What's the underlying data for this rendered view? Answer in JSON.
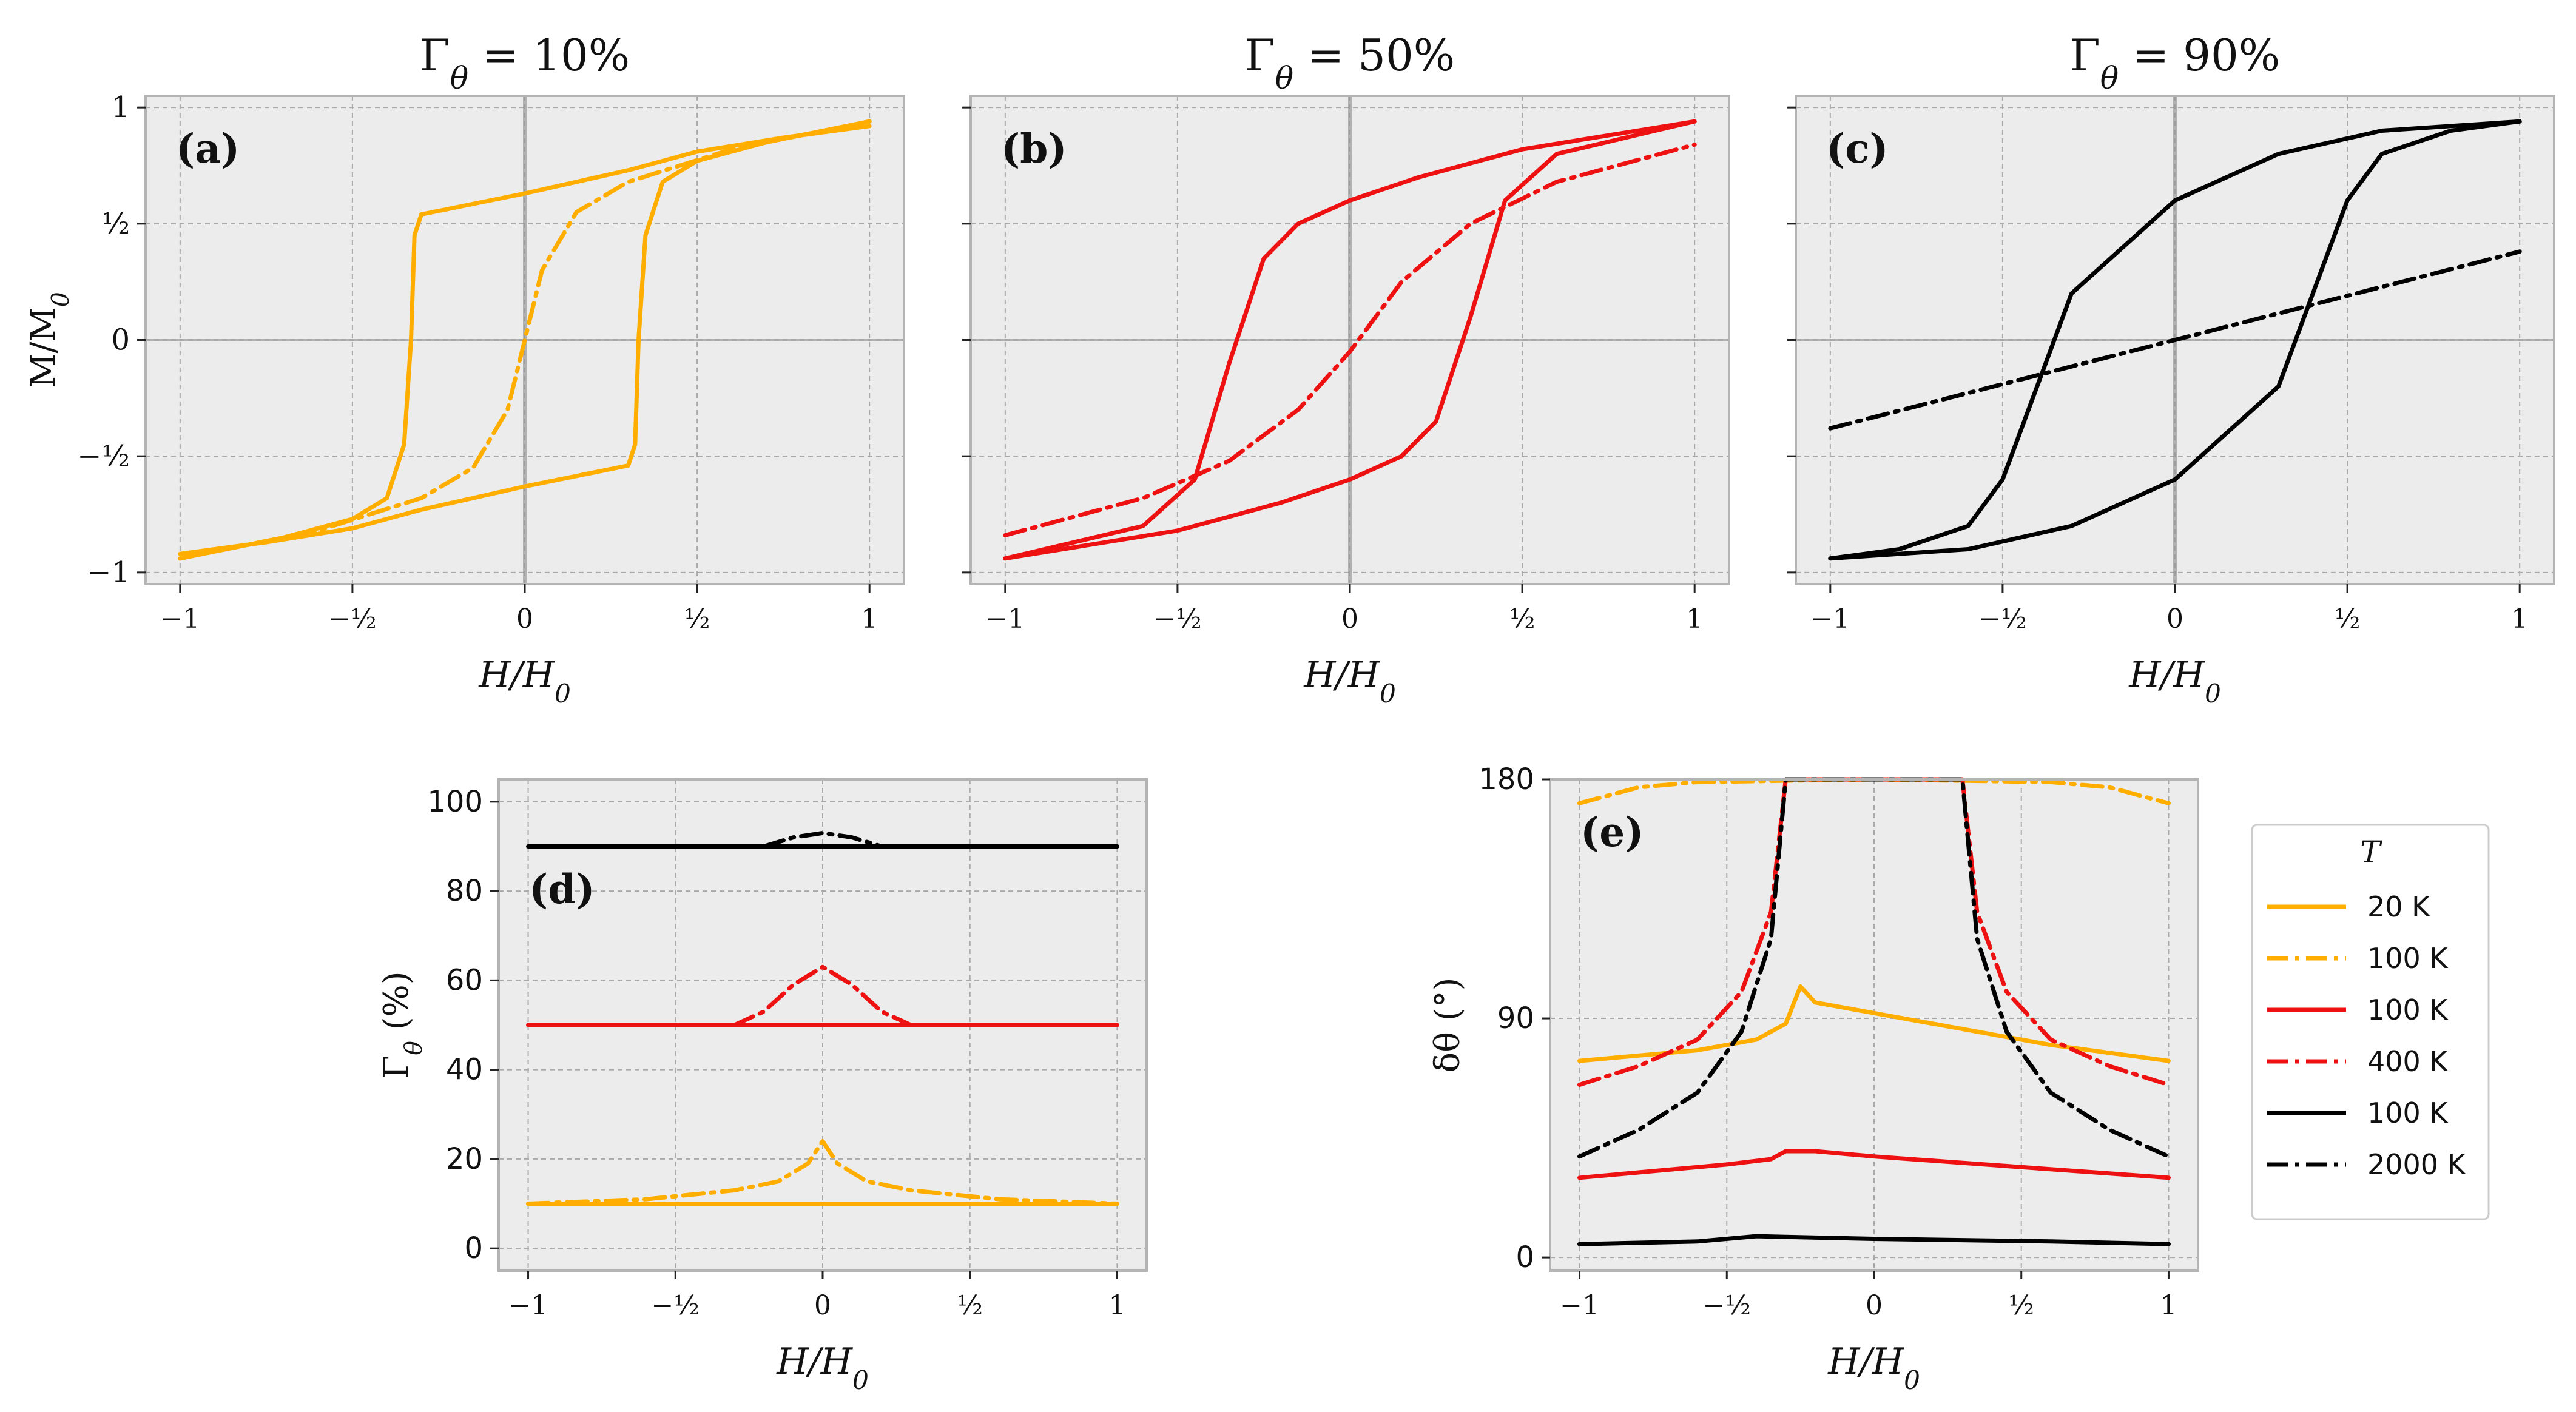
{
  "chart_data": [
    {
      "id": "a",
      "type": "line",
      "title": "Γ_θ = 10%",
      "panel_label": "(a)",
      "xlabel": "H/H_0",
      "ylabel": "M/M_0",
      "xlim": [
        -1.1,
        1.1
      ],
      "ylim": [
        -1.05,
        1.05
      ],
      "xticks": [
        -1,
        -0.5,
        0,
        0.5,
        1
      ],
      "xticklabels": [
        "−1",
        "−½",
        "0",
        "½",
        "1"
      ],
      "yticks": [
        -1,
        -0.5,
        0,
        0.5,
        1
      ],
      "yticklabels": [
        "−1",
        "−½",
        "0",
        "½",
        "1"
      ],
      "grid": true,
      "series": [
        {
          "color": "#FFAE00",
          "style": "solid",
          "x": [
            -1,
            -0.7,
            -0.5,
            -0.4,
            -0.35,
            -0.33,
            -0.32,
            -0.3,
            0,
            0.3,
            0.5,
            0.75,
            1
          ],
          "y": [
            -0.94,
            -0.85,
            -0.77,
            -0.68,
            -0.45,
            0.0,
            0.45,
            0.54,
            0.63,
            0.73,
            0.81,
            0.87,
            0.92
          ]
        },
        {
          "color": "#FFAE00",
          "style": "solid",
          "x": [
            1,
            0.7,
            0.5,
            0.4,
            0.35,
            0.33,
            0.32,
            0.3,
            0,
            -0.3,
            -0.5,
            -0.75,
            -1
          ],
          "y": [
            0.94,
            0.85,
            0.77,
            0.68,
            0.45,
            0.0,
            -0.45,
            -0.54,
            -0.63,
            -0.73,
            -0.81,
            -0.87,
            -0.92
          ]
        },
        {
          "color": "#FFAE00",
          "style": "dashdot",
          "x": [
            -1,
            -0.6,
            -0.3,
            -0.15,
            -0.05,
            0,
            0.05,
            0.15,
            0.3,
            0.6,
            1
          ],
          "y": [
            -0.94,
            -0.82,
            -0.68,
            -0.55,
            -0.3,
            0,
            0.3,
            0.55,
            0.68,
            0.82,
            0.94
          ]
        }
      ]
    },
    {
      "id": "b",
      "type": "line",
      "title": "Γ_θ = 50%",
      "panel_label": "(b)",
      "xlabel": "H/H_0",
      "ylabel": "",
      "xlim": [
        -1.1,
        1.1
      ],
      "ylim": [
        -1.05,
        1.05
      ],
      "xticks": [
        -1,
        -0.5,
        0,
        0.5,
        1
      ],
      "xticklabels": [
        "−1",
        "−½",
        "0",
        "½",
        "1"
      ],
      "yticks": [
        -1,
        -0.5,
        0,
        0.5,
        1
      ],
      "yticklabels": [],
      "grid": true,
      "series": [
        {
          "color": "#EE1111",
          "style": "solid",
          "x": [
            -1,
            -0.6,
            -0.45,
            -0.35,
            -0.25,
            -0.15,
            0,
            0.2,
            0.5,
            0.75,
            1
          ],
          "y": [
            -0.94,
            -0.8,
            -0.6,
            -0.1,
            0.35,
            0.5,
            0.6,
            0.7,
            0.82,
            0.88,
            0.94
          ]
        },
        {
          "color": "#EE1111",
          "style": "solid",
          "x": [
            1,
            0.6,
            0.45,
            0.35,
            0.25,
            0.15,
            0,
            -0.2,
            -0.5,
            -0.75,
            -1
          ],
          "y": [
            0.94,
            0.8,
            0.6,
            0.1,
            -0.35,
            -0.5,
            -0.6,
            -0.7,
            -0.82,
            -0.88,
            -0.94
          ]
        },
        {
          "color": "#EE1111",
          "style": "dashdot",
          "x": [
            -1,
            -0.6,
            -0.35,
            -0.15,
            0,
            0.15,
            0.35,
            0.6,
            1
          ],
          "y": [
            -0.84,
            -0.68,
            -0.52,
            -0.3,
            -0.05,
            0.25,
            0.5,
            0.68,
            0.84
          ]
        }
      ]
    },
    {
      "id": "c",
      "type": "line",
      "title": "Γ_θ = 90%",
      "panel_label": "(c)",
      "xlabel": "H/H_0",
      "ylabel": "",
      "xlim": [
        -1.1,
        1.1
      ],
      "ylim": [
        -1.05,
        1.05
      ],
      "xticks": [
        -1,
        -0.5,
        0,
        0.5,
        1
      ],
      "xticklabels": [
        "−1",
        "−½",
        "0",
        "½",
        "1"
      ],
      "yticks": [
        -1,
        -0.5,
        0,
        0.5,
        1
      ],
      "yticklabels": [],
      "grid": true,
      "series": [
        {
          "color": "#000000",
          "style": "solid",
          "x": [
            -1,
            -0.8,
            -0.6,
            -0.5,
            -0.4,
            -0.3,
            0,
            0.3,
            0.6,
            1
          ],
          "y": [
            -0.94,
            -0.9,
            -0.8,
            -0.6,
            -0.2,
            0.2,
            0.6,
            0.8,
            0.9,
            0.94
          ]
        },
        {
          "color": "#000000",
          "style": "solid",
          "x": [
            1,
            0.8,
            0.6,
            0.5,
            0.4,
            0.3,
            0,
            -0.3,
            -0.6,
            -1
          ],
          "y": [
            0.94,
            0.9,
            0.8,
            0.6,
            0.2,
            -0.2,
            -0.6,
            -0.8,
            -0.9,
            -0.94
          ]
        },
        {
          "color": "#000000",
          "style": "dashdot",
          "x": [
            -1,
            1
          ],
          "y": [
            -0.38,
            0.38
          ]
        }
      ]
    },
    {
      "id": "d",
      "type": "line",
      "title": "",
      "panel_label": "(d)",
      "xlabel": "H/H_0",
      "ylabel": "Γ_θ (%)",
      "xlim": [
        -1.1,
        1.1
      ],
      "ylim": [
        -5,
        105
      ],
      "xticks": [
        -1,
        -0.5,
        0,
        0.5,
        1
      ],
      "xticklabels": [
        "−1",
        "−½",
        "0",
        "½",
        "1"
      ],
      "yticks": [
        0,
        20,
        40,
        60,
        80,
        100
      ],
      "yticklabels": [
        "0",
        "20",
        "40",
        "60",
        "80",
        "100"
      ],
      "grid": true,
      "series": [
        {
          "color": "#FFAE00",
          "style": "solid",
          "x": [
            -1,
            1
          ],
          "y": [
            10,
            10
          ]
        },
        {
          "color": "#FFAE00",
          "style": "dashdot",
          "x": [
            -1,
            -0.6,
            -0.3,
            -0.15,
            -0.05,
            0,
            0.05,
            0.15,
            0.3,
            0.6,
            1
          ],
          "y": [
            10,
            11,
            13,
            15,
            19,
            24,
            19,
            15,
            13,
            11,
            10
          ]
        },
        {
          "color": "#EE1111",
          "style": "solid",
          "x": [
            -1,
            1
          ],
          "y": [
            50,
            50
          ]
        },
        {
          "color": "#EE1111",
          "style": "dashdot",
          "x": [
            -0.3,
            -0.2,
            -0.1,
            0,
            0.1,
            0.2,
            0.3
          ],
          "y": [
            50,
            53,
            59,
            63,
            59,
            53,
            50
          ]
        },
        {
          "color": "#000000",
          "style": "solid",
          "x": [
            -1,
            1
          ],
          "y": [
            90,
            90
          ]
        },
        {
          "color": "#000000",
          "style": "dashdot",
          "x": [
            -0.2,
            -0.1,
            0,
            0.1,
            0.2
          ],
          "y": [
            90,
            92,
            93,
            92,
            90
          ]
        }
      ]
    },
    {
      "id": "e",
      "type": "line",
      "title": "",
      "panel_label": "(e)",
      "xlabel": "H/H_0",
      "ylabel": "δθ (°)",
      "xlim": [
        -1.1,
        1.1
      ],
      "ylim": [
        -5,
        180
      ],
      "xticks": [
        -1,
        -0.5,
        0,
        0.5,
        1
      ],
      "xticklabels": [
        "−1",
        "−½",
        "0",
        "½",
        "1"
      ],
      "yticks": [
        0,
        90,
        180
      ],
      "yticklabels": [
        "0",
        "90",
        "180"
      ],
      "grid": true,
      "legend": {
        "title": "T",
        "placement": "right, outside",
        "entries": [
          {
            "label": "20 K",
            "color": "#FFAE00",
            "style": "solid"
          },
          {
            "label": "100 K",
            "color": "#FFAE00",
            "style": "dashdot"
          },
          {
            "label": "100 K",
            "color": "#EE1111",
            "style": "solid"
          },
          {
            "label": "400 K",
            "color": "#EE1111",
            "style": "dashdot"
          },
          {
            "label": "100 K",
            "color": "#000000",
            "style": "solid"
          },
          {
            "label": "2000 K",
            "color": "#000000",
            "style": "dashdot"
          }
        ]
      },
      "series": [
        {
          "color": "#FFAE00",
          "style": "solid",
          "x": [
            -1,
            -0.6,
            -0.4,
            -0.3,
            -0.25,
            -0.2,
            0,
            0.3,
            0.6,
            1
          ],
          "y": [
            74,
            78,
            82,
            88,
            102,
            96,
            92,
            86,
            80,
            74
          ]
        },
        {
          "color": "#FFAE00",
          "style": "dashdot",
          "x": [
            -1,
            -0.8,
            -0.6,
            0,
            0.6,
            0.8,
            1
          ],
          "y": [
            171,
            177,
            179,
            180,
            179,
            177,
            171
          ]
        },
        {
          "color": "#EE1111",
          "style": "solid",
          "x": [
            -1,
            -0.5,
            -0.35,
            -0.3,
            -0.2,
            0,
            0.5,
            1
          ],
          "y": [
            30,
            35,
            37,
            40,
            40,
            38,
            34,
            30
          ]
        },
        {
          "color": "#EE1111",
          "style": "dashdot",
          "x": [
            -1,
            -0.8,
            -0.6,
            -0.45,
            -0.35,
            -0.3,
            0,
            0.3,
            0.35,
            0.45,
            0.6,
            0.8,
            1
          ],
          "y": [
            65,
            72,
            82,
            100,
            130,
            180,
            180,
            180,
            130,
            100,
            82,
            72,
            65
          ]
        },
        {
          "color": "#000000",
          "style": "solid",
          "x": [
            -1,
            -0.6,
            -0.4,
            0,
            0.6,
            1
          ],
          "y": [
            5,
            6,
            8,
            7,
            6,
            5
          ]
        },
        {
          "color": "#000000",
          "style": "dashdot",
          "x": [
            -1,
            -0.8,
            -0.6,
            -0.45,
            -0.35,
            -0.3,
            0,
            0.3,
            0.35,
            0.45,
            0.6,
            0.8,
            1
          ],
          "y": [
            38,
            48,
            62,
            85,
            120,
            180,
            180,
            180,
            120,
            85,
            62,
            48,
            38
          ]
        }
      ]
    }
  ]
}
